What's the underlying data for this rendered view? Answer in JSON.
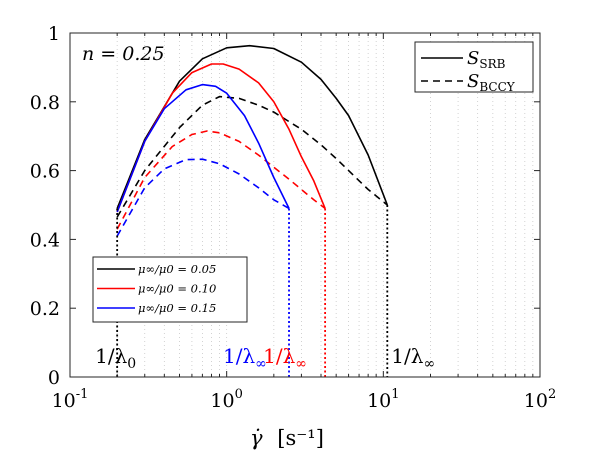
{
  "chart_data": {
    "type": "line",
    "xscale": "log",
    "xlim": [
      0.1,
      100
    ],
    "ylim": [
      0,
      1
    ],
    "xticks": [
      0.1,
      1,
      10,
      100
    ],
    "xtick_labels": [
      {
        "base": "10",
        "exp": "-1"
      },
      {
        "base": "10",
        "exp": "0"
      },
      {
        "base": "10",
        "exp": "1"
      },
      {
        "base": "10",
        "exp": "2"
      }
    ],
    "yticks": [
      0,
      0.2,
      0.4,
      0.6,
      0.8,
      1
    ],
    "ytick_labels": [
      "0",
      "0.2",
      "0.4",
      "0.6",
      "0.8",
      "1"
    ],
    "xlabel": {
      "symbol": "γ̇",
      "units": "[s⁻¹]"
    },
    "grid": "minor-dotted-x",
    "annotation_n": "n = 0.25",
    "style_legend": {
      "position": "top-right",
      "entries": [
        {
          "label": "S",
          "sub": "SRB",
          "dash": "solid"
        },
        {
          "label": "S",
          "sub": "BCCY",
          "dash": "dashed"
        }
      ]
    },
    "color_legend": {
      "position": "bottom-left",
      "entries": [
        {
          "label": "μ∞/μ0 = 0.05",
          "color": "#000000"
        },
        {
          "label": "μ∞/μ0 = 0.10",
          "color": "#ff0000"
        },
        {
          "label": "μ∞/μ0 = 0.15",
          "color": "#0000ff"
        }
      ]
    },
    "series": [
      {
        "color": "#000000",
        "dash": "solid",
        "x": [
          0.2,
          0.3,
          0.5,
          0.7,
          1.0,
          1.4,
          2.0,
          3.0,
          4.0,
          5.0,
          6.0,
          8.0,
          10.6
        ],
        "y": [
          0.49,
          0.69,
          0.86,
          0.925,
          0.957,
          0.963,
          0.955,
          0.915,
          0.865,
          0.81,
          0.76,
          0.645,
          0.5
        ]
      },
      {
        "color": "#000000",
        "dash": "dashed",
        "x": [
          0.2,
          0.3,
          0.5,
          0.7,
          0.9,
          1.2,
          1.6,
          2.0,
          3.0,
          4.0,
          5.0,
          6.0,
          8.0,
          10.6
        ],
        "y": [
          0.465,
          0.6,
          0.725,
          0.79,
          0.815,
          0.81,
          0.79,
          0.77,
          0.72,
          0.675,
          0.635,
          0.6,
          0.545,
          0.5
        ]
      },
      {
        "color": "#ff0000",
        "dash": "solid",
        "x": [
          0.2,
          0.3,
          0.45,
          0.6,
          0.8,
          0.95,
          1.2,
          1.6,
          2.0,
          2.5,
          3.0,
          3.6,
          4.25
        ],
        "y": [
          0.48,
          0.685,
          0.825,
          0.885,
          0.91,
          0.91,
          0.895,
          0.855,
          0.8,
          0.72,
          0.64,
          0.57,
          0.49
        ]
      },
      {
        "color": "#ff0000",
        "dash": "dashed",
        "x": [
          0.2,
          0.3,
          0.45,
          0.6,
          0.75,
          0.9,
          1.2,
          1.6,
          2.0,
          2.5,
          3.0,
          3.6,
          4.25
        ],
        "y": [
          0.43,
          0.58,
          0.67,
          0.705,
          0.715,
          0.71,
          0.685,
          0.645,
          0.61,
          0.575,
          0.545,
          0.515,
          0.49
        ]
      },
      {
        "color": "#0000ff",
        "dash": "solid",
        "x": [
          0.2,
          0.3,
          0.4,
          0.55,
          0.7,
          0.85,
          1.0,
          1.3,
          1.6,
          2.0,
          2.5
        ],
        "y": [
          0.48,
          0.685,
          0.78,
          0.835,
          0.85,
          0.845,
          0.825,
          0.76,
          0.68,
          0.58,
          0.49
        ]
      },
      {
        "color": "#0000ff",
        "dash": "dashed",
        "x": [
          0.2,
          0.3,
          0.4,
          0.55,
          0.7,
          0.9,
          1.2,
          1.6,
          2.0,
          2.5
        ],
        "y": [
          0.41,
          0.55,
          0.605,
          0.632,
          0.633,
          0.62,
          0.59,
          0.55,
          0.515,
          0.49
        ]
      }
    ],
    "vlines": [
      {
        "x": 0.2,
        "y_top": 0.49,
        "color": "#000000"
      },
      {
        "x": 2.5,
        "y_top": 0.49,
        "color": "#0000ff"
      },
      {
        "x": 4.25,
        "y_top": 0.49,
        "color": "#ff0000"
      },
      {
        "x": 10.6,
        "y_top": 0.5,
        "color": "#000000"
      }
    ],
    "vline_labels": [
      {
        "base": "1/λ",
        "sub": "0",
        "color": "#000000",
        "x": 0.2
      },
      {
        "base": "1/λ",
        "sub": "∞",
        "color": "#0000ff",
        "x": 2.5
      },
      {
        "base": "1/λ",
        "sub": "∞",
        "color": "#ff0000",
        "x": 4.25
      },
      {
        "base": "1/λ",
        "sub": "∞",
        "color": "#000000",
        "x": 10.6
      }
    ]
  }
}
